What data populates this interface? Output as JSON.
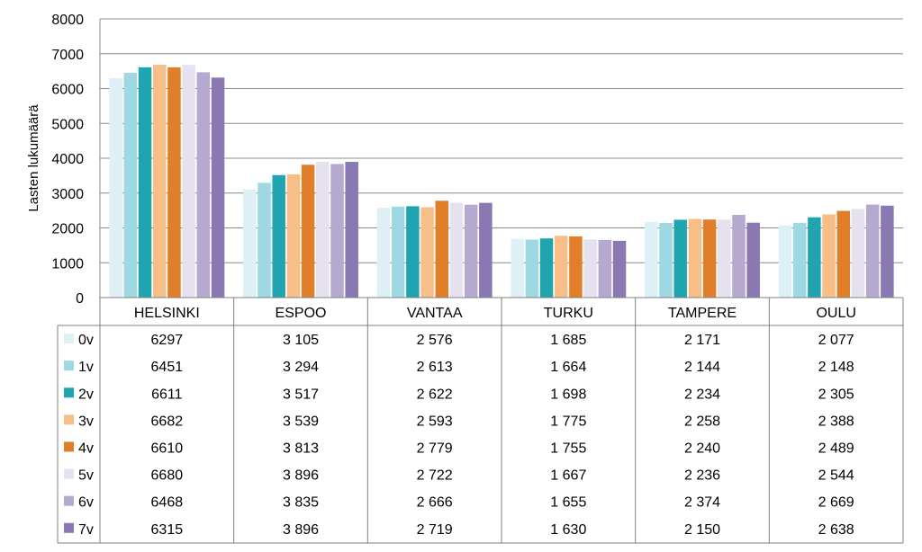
{
  "chart_data": {
    "type": "bar",
    "title": "",
    "xlabel": "",
    "ylabel": "Lasten lukumäärä",
    "ylim": [
      0,
      8000
    ],
    "yticks": [
      "0",
      "1000",
      "2000",
      "3000",
      "4000",
      "5000",
      "6000",
      "7000",
      "8000"
    ],
    "grid": true,
    "legend": "data-table-left",
    "categories": [
      "HELSINKI",
      "ESPOO",
      "VANTAA",
      "TURKU",
      "TAMPERE",
      "OULU"
    ],
    "series": [
      {
        "name": "0v",
        "color": "#DDF0F5",
        "values": [
          6297,
          3105,
          2576,
          1685,
          2171,
          2077
        ],
        "labels": [
          "6297",
          "3 105",
          "2 576",
          "1 685",
          "2 171",
          "2 077"
        ]
      },
      {
        "name": "1v",
        "color": "#9ED8E2",
        "values": [
          6451,
          3294,
          2613,
          1664,
          2144,
          2148
        ],
        "labels": [
          "6451",
          "3 294",
          "2 613",
          "1 664",
          "2 144",
          "2 148"
        ]
      },
      {
        "name": "2v",
        "color": "#20A5B0",
        "values": [
          6611,
          3517,
          2622,
          1698,
          2234,
          2305
        ],
        "labels": [
          "6611",
          "3 517",
          "2 622",
          "1 698",
          "2 234",
          "2 305"
        ]
      },
      {
        "name": "3v",
        "color": "#F8BE88",
        "values": [
          6682,
          3539,
          2593,
          1775,
          2258,
          2388
        ],
        "labels": [
          "6682",
          "3 539",
          "2 593",
          "1 775",
          "2 258",
          "2 388"
        ]
      },
      {
        "name": "4v",
        "color": "#E17E2A",
        "values": [
          6610,
          3813,
          2779,
          1755,
          2240,
          2489
        ],
        "labels": [
          "6610",
          "3 813",
          "2 779",
          "1 755",
          "2 240",
          "2 489"
        ]
      },
      {
        "name": "5v",
        "color": "#E6E1EE",
        "values": [
          6680,
          3896,
          2722,
          1667,
          2236,
          2544
        ],
        "labels": [
          "6680",
          "3 896",
          "2 722",
          "1 667",
          "2 236",
          "2 544"
        ]
      },
      {
        "name": "6v",
        "color": "#B5A9CF",
        "values": [
          6468,
          3835,
          2666,
          1655,
          2374,
          2669
        ],
        "labels": [
          "6468",
          "3 835",
          "2 666",
          "1 655",
          "2 374",
          "2 669"
        ]
      },
      {
        "name": "7v",
        "color": "#8A78B2",
        "values": [
          6315,
          3896,
          2719,
          1630,
          2150,
          2638
        ],
        "labels": [
          "6315",
          "3 896",
          "2 719",
          "1 630",
          "2 150",
          "2 638"
        ]
      }
    ]
  }
}
